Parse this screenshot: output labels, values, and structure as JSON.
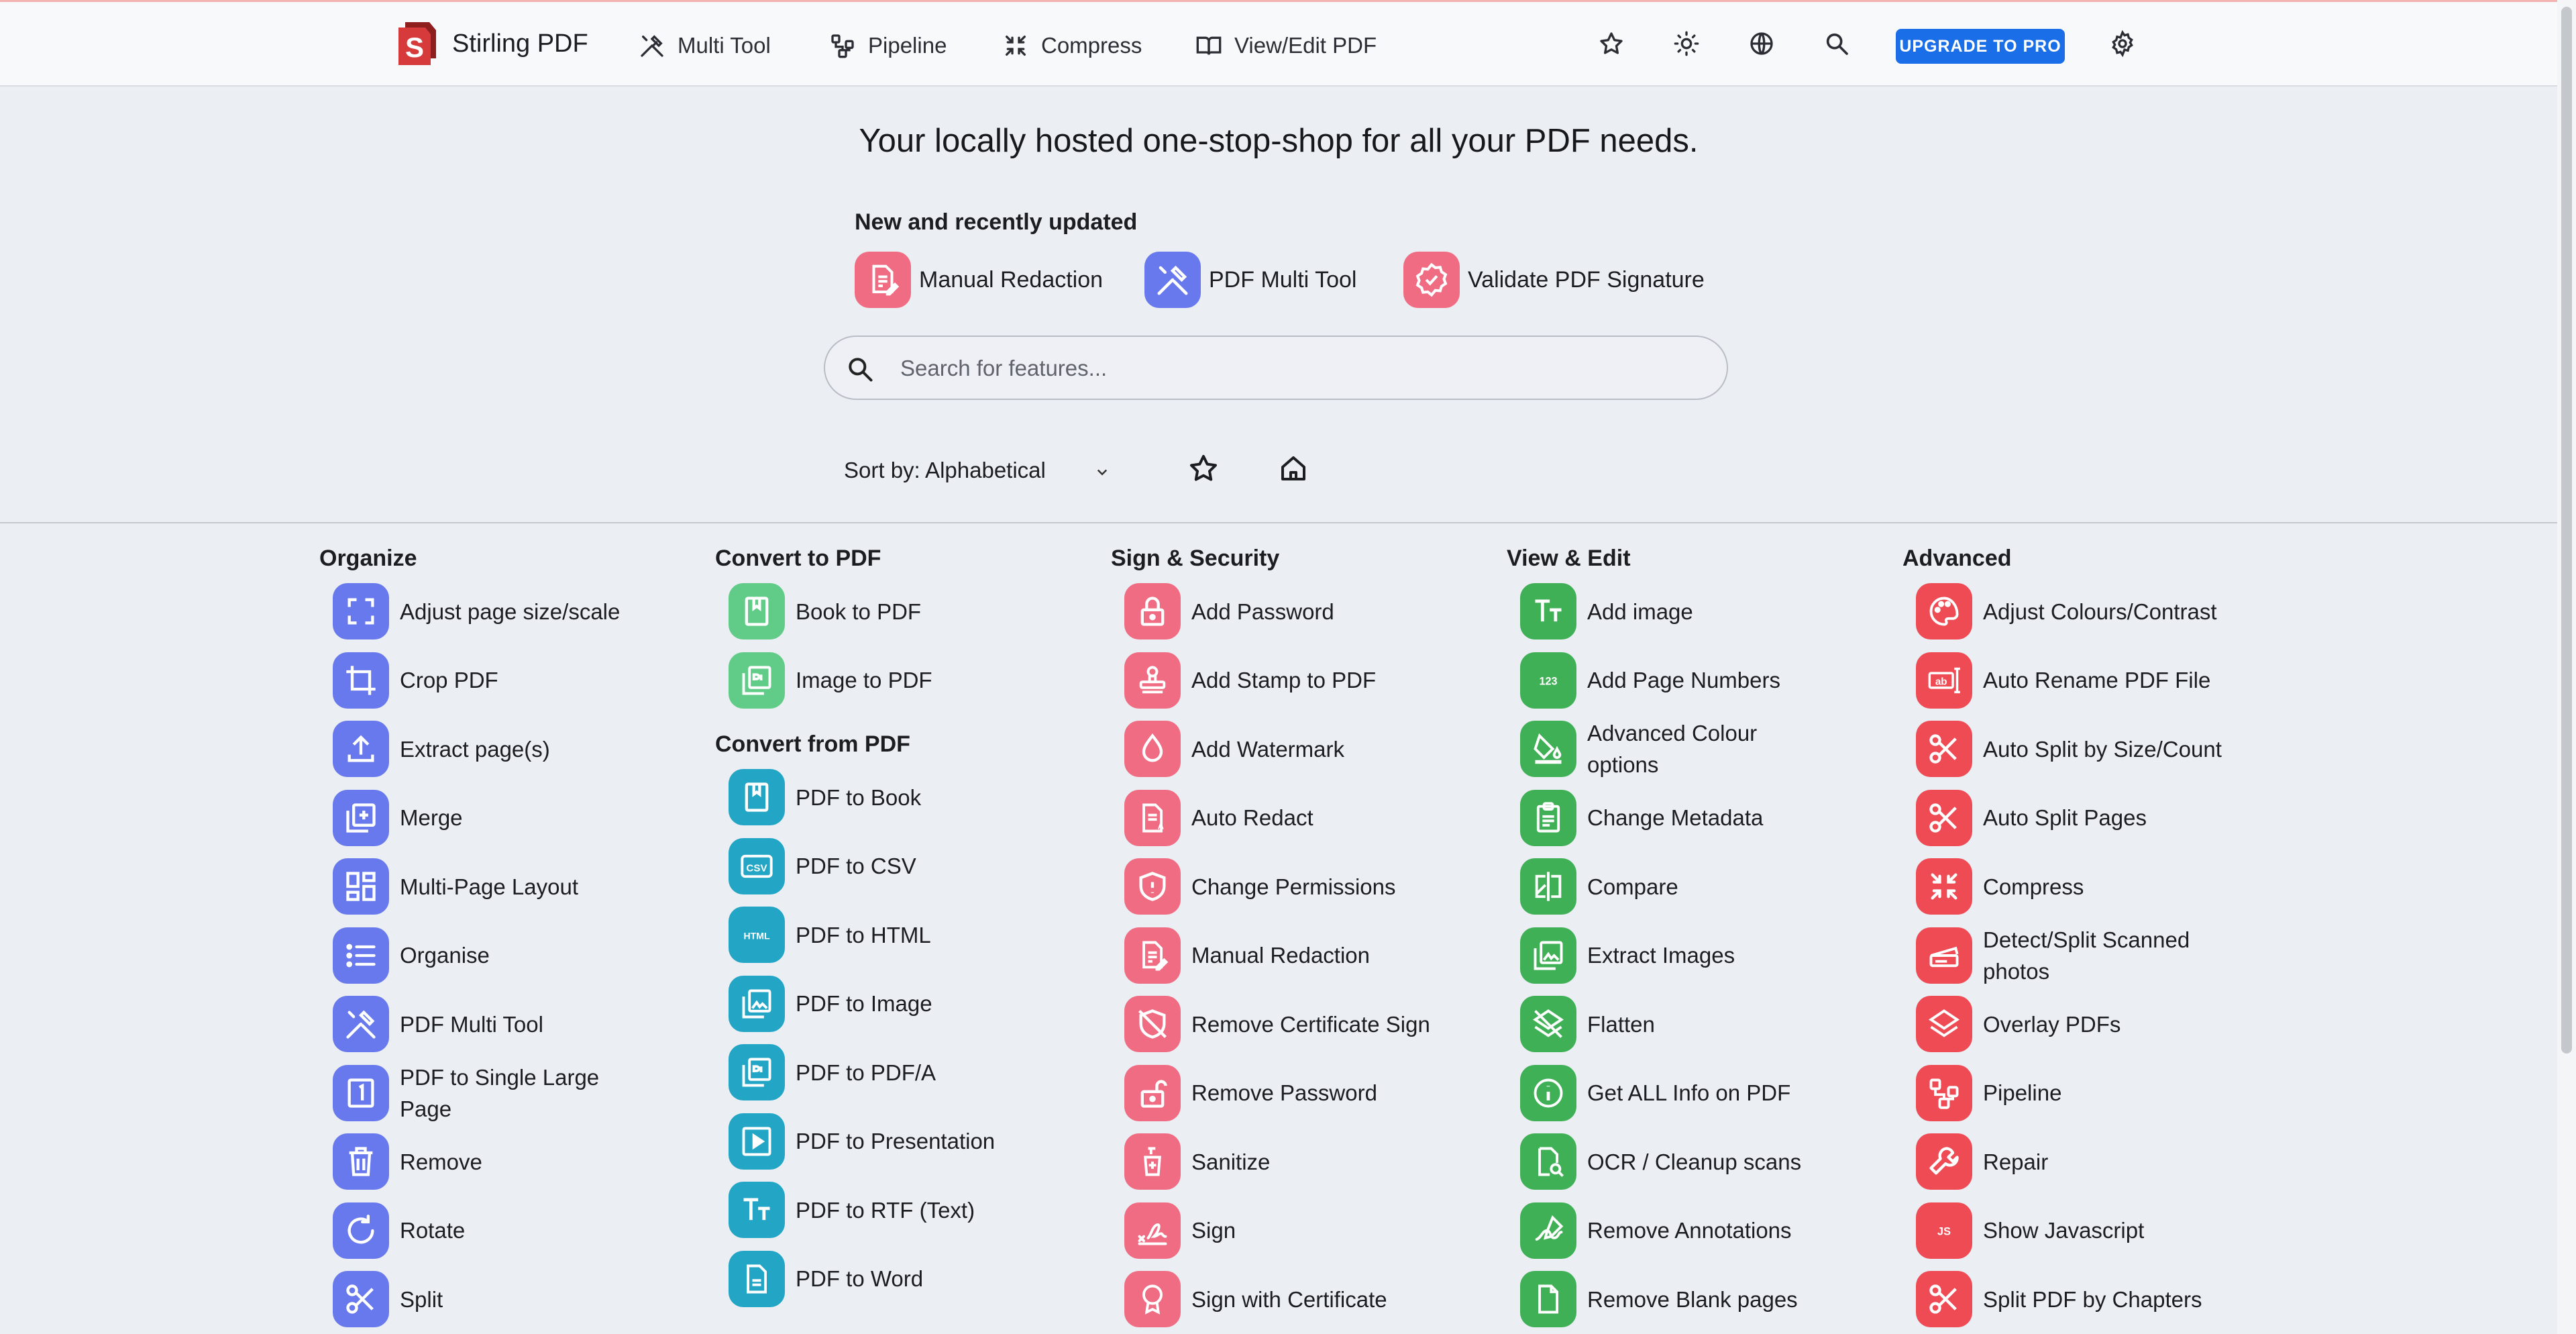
{
  "navbar": {
    "brand": "Stirling PDF",
    "links": [
      {
        "label": "Multi Tool",
        "icon": "tools-icon"
      },
      {
        "label": "Pipeline",
        "icon": "pipeline-icon"
      },
      {
        "label": "Compress",
        "icon": "compress-icon"
      },
      {
        "label": "View/Edit PDF",
        "icon": "book-icon"
      }
    ],
    "upgrade_label": "UPGRADE TO PRO",
    "colors": {
      "accent": "#1a6fe8",
      "brand_red": "#d73a3a"
    }
  },
  "hero": {
    "tagline": "Your locally hosted one-stop-shop for all your PDF needs.",
    "recent_title": "New and recently updated",
    "recent": [
      {
        "label": "Manual Redaction",
        "icon": "redaction-icon",
        "color": "#ef6c83"
      },
      {
        "label": "PDF Multi Tool",
        "icon": "tools-icon",
        "color": "#6878ed"
      },
      {
        "label": "Validate PDF Signature",
        "icon": "verified-icon",
        "color": "#ef6c83"
      }
    ],
    "search_placeholder": "Search for features...",
    "sort_label": "Sort by: Alphabetical"
  },
  "categories": [
    {
      "title": "Organize",
      "color": "#6878ed",
      "tools": [
        "Adjust page size/scale",
        "Crop PDF",
        "Extract page(s)",
        "Merge",
        "Multi-Page Layout",
        "Organise",
        "PDF Multi Tool",
        "PDF to Single Large Page",
        "Remove",
        "Rotate",
        "Split"
      ]
    },
    {
      "title": "Convert to PDF",
      "color": "#61cc88",
      "tools": [
        "Book to PDF",
        "Image to PDF"
      ]
    },
    {
      "title": "Convert from PDF",
      "color": "#23a6c6",
      "tools": [
        "PDF to Book",
        "PDF to CSV",
        "PDF to HTML",
        "PDF to Image",
        "PDF to PDF/A",
        "PDF to Presentation",
        "PDF to RTF (Text)",
        "PDF to Word"
      ],
      "icon_text": {
        "csv": "CSV",
        "html": "HTML"
      }
    },
    {
      "title": "Sign & Security",
      "color": "#ef6c83",
      "tools": [
        "Add Password",
        "Add Stamp to PDF",
        "Add Watermark",
        "Auto Redact",
        "Change Permissions",
        "Manual Redaction",
        "Remove Certificate Sign",
        "Remove Password",
        "Sanitize",
        "Sign",
        "Sign with Certificate"
      ]
    },
    {
      "title": "View & Edit",
      "color": "#3fb055",
      "tools": [
        "Add image",
        "Add Page Numbers",
        "Advanced Colour options",
        "Change Metadata",
        "Compare",
        "Extract Images",
        "Flatten",
        "Get ALL Info on PDF",
        "OCR / Cleanup scans",
        "Remove Annotations",
        "Remove Blank pages"
      ],
      "icon_text": {
        "numbers": "123"
      }
    },
    {
      "title": "Advanced",
      "color": "#ef4b55",
      "tools": [
        "Adjust Colours/Contrast",
        "Auto Rename PDF File",
        "Auto Split by Size/Count",
        "Auto Split Pages",
        "Compress",
        "Detect/Split Scanned photos",
        "Overlay PDFs",
        "Pipeline",
        "Repair",
        "Show Javascript",
        "Split PDF by Chapters"
      ],
      "icon_text": {
        "rename": "ab",
        "js": "JS"
      }
    }
  ]
}
